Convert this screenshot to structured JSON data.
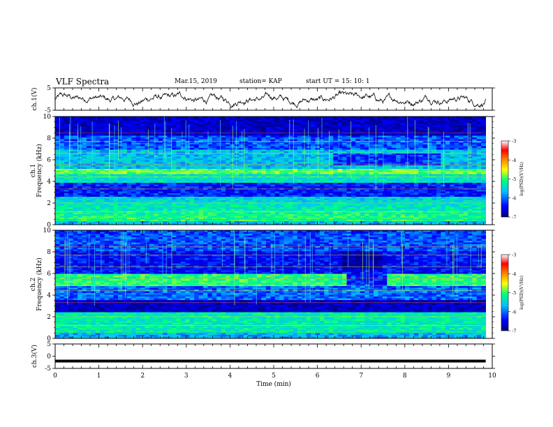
{
  "header": {
    "title": "VLF Spectra",
    "date": "Mar.15, 2019",
    "station": "station= KAP",
    "start": "start  UT =   15: 10: 1"
  },
  "chart_data": [
    {
      "type": "line",
      "ylabel": "ch.1(V)",
      "ylim": [
        -5,
        5
      ],
      "yticks": [
        5,
        -5
      ],
      "xlim": [
        0,
        10
      ],
      "x_end": 9.85,
      "trace": "noisy waveform around 0 V, excursions roughly -4 to +4 V"
    },
    {
      "type": "heatmap",
      "ylabel_channel": "ch.1",
      "ylabel": "Frequency (kHz)",
      "ylim": [
        0,
        10
      ],
      "yticks": [
        0,
        2,
        4,
        6,
        8,
        10
      ],
      "xlim": [
        0,
        10
      ],
      "colorbar": {
        "label": "log(PSD)(V²/Hz)",
        "range": [
          -7,
          -3
        ],
        "ticks": [
          "-3",
          "-4",
          "-5",
          "-6",
          "-7"
        ],
        "colors": [
          "#00007f",
          "#0000ff",
          "#00bfff",
          "#00ff7f",
          "#ffff00",
          "#ff7f00",
          "#ff0000",
          "#ffffff"
        ]
      }
    },
    {
      "type": "heatmap",
      "ylabel_channel": "ch.2",
      "ylabel": "Frequency (kHz)",
      "ylim": [
        0,
        10
      ],
      "yticks": [
        0,
        2,
        4,
        6,
        8,
        10
      ],
      "xlim": [
        0,
        10
      ],
      "colorbar": {
        "label": "log(PSD)(V²/Hz)",
        "range": [
          -7,
          -3
        ],
        "ticks": [
          "-3",
          "-4",
          "-5",
          "-6",
          "-7"
        ]
      }
    },
    {
      "type": "line",
      "ylabel": "ch.3(V)",
      "ylim": [
        -5,
        5
      ],
      "yticks": [
        5,
        0,
        -5
      ],
      "xlim": [
        0,
        10
      ],
      "x_end": 9.85,
      "constant_value": -2,
      "trace": "flat thick line at about -2 V"
    }
  ],
  "xaxis": {
    "label": "Time (min)",
    "ticks": [
      "0",
      "1",
      "2",
      "3",
      "4",
      "5",
      "6",
      "7",
      "8",
      "9",
      "10"
    ]
  }
}
